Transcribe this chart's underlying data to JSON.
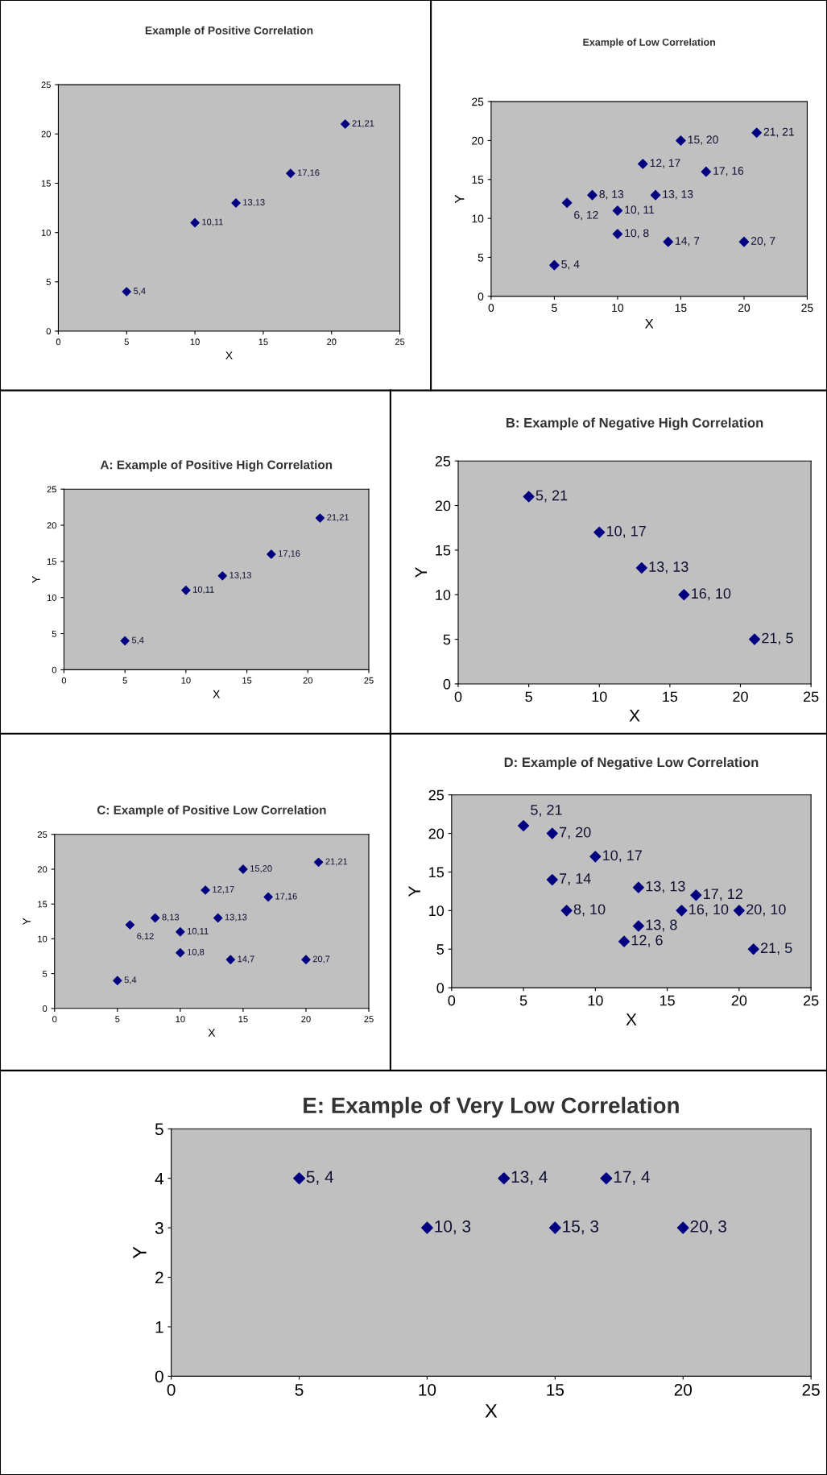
{
  "chart_data": [
    {
      "type": "scatter",
      "title": "Example of Positive Correlation",
      "xlabel": "X",
      "x": [
        5,
        10,
        13,
        17,
        21
      ],
      "values": [
        4,
        11,
        13,
        16,
        21
      ],
      "color": "#000080",
      "marker": "diamond",
      "xlim": [
        0,
        25
      ],
      "ylim": [
        0,
        25
      ],
      "xticks": [
        0,
        5,
        10,
        15,
        20,
        25
      ],
      "yticks": [
        0,
        5,
        10,
        15,
        20,
        25
      ],
      "annotations": [
        {
          "text": "5,4",
          "x": 5,
          "y": 4
        },
        {
          "text": "10,11",
          "x": 10,
          "y": 11
        },
        {
          "text": "13,13",
          "x": 13,
          "y": 13
        },
        {
          "text": "17,16",
          "x": 17,
          "y": 16
        },
        {
          "text": "21,21",
          "x": 21,
          "y": 21
        }
      ]
    },
    {
      "type": "scatter",
      "title": "Example of Low Correlation",
      "xlabel": "X",
      "ylabel": "Y",
      "x": [
        5,
        6,
        8,
        10,
        10,
        12,
        13,
        14,
        15,
        17,
        20,
        21
      ],
      "values": [
        4,
        12,
        13,
        11,
        8,
        17,
        13,
        7,
        20,
        16,
        7,
        21
      ],
      "color": "#000080",
      "marker": "diamond",
      "xlim": [
        0,
        25
      ],
      "ylim": [
        0,
        25
      ],
      "xticks": [
        0,
        5,
        10,
        15,
        20,
        25
      ],
      "yticks": [
        0,
        5,
        10,
        15,
        20,
        25
      ],
      "annotations": [
        {
          "text": "5, 4",
          "x": 5,
          "y": 4
        },
        {
          "text": "6, 12",
          "x": 6,
          "y": 12
        },
        {
          "text": "8, 13",
          "x": 8,
          "y": 13
        },
        {
          "text": "10, 11",
          "x": 10,
          "y": 11
        },
        {
          "text": "10, 8",
          "x": 10,
          "y": 8
        },
        {
          "text": "12, 17",
          "x": 12,
          "y": 17
        },
        {
          "text": "13, 13",
          "x": 13,
          "y": 13
        },
        {
          "text": "14, 7",
          "x": 14,
          "y": 7
        },
        {
          "text": "15, 20",
          "x": 15,
          "y": 20
        },
        {
          "text": "17, 16",
          "x": 17,
          "y": 16
        },
        {
          "text": "20, 7",
          "x": 20,
          "y": 7
        },
        {
          "text": "21, 21",
          "x": 21,
          "y": 21
        }
      ]
    },
    {
      "type": "scatter",
      "title": "A: Example of Positive High Correlation",
      "xlabel": "X",
      "ylabel": "Y",
      "x": [
        5,
        10,
        13,
        17,
        21
      ],
      "values": [
        4,
        11,
        13,
        16,
        21
      ],
      "color": "#000080",
      "marker": "diamond",
      "xlim": [
        0,
        25
      ],
      "ylim": [
        0,
        25
      ],
      "xticks": [
        0,
        5,
        10,
        15,
        20,
        25
      ],
      "yticks": [
        0,
        5,
        10,
        15,
        20,
        25
      ],
      "annotations": [
        {
          "text": "5,4",
          "x": 5,
          "y": 4
        },
        {
          "text": "10,11",
          "x": 10,
          "y": 11
        },
        {
          "text": "13,13",
          "x": 13,
          "y": 13
        },
        {
          "text": "17,16",
          "x": 17,
          "y": 16
        },
        {
          "text": "21,21",
          "x": 21,
          "y": 21
        }
      ]
    },
    {
      "type": "scatter",
      "title": "B: Example of Negative High Correlation",
      "xlabel": "X",
      "ylabel": "Y",
      "x": [
        5,
        10,
        13,
        16,
        21
      ],
      "values": [
        21,
        17,
        13,
        10,
        5
      ],
      "color": "#000080",
      "marker": "diamond",
      "xlim": [
        0,
        25
      ],
      "ylim": [
        0,
        25
      ],
      "xticks": [
        0,
        5,
        10,
        15,
        20,
        25
      ],
      "yticks": [
        0,
        5,
        10,
        15,
        20,
        25
      ],
      "annotations": [
        {
          "text": "5, 21",
          "x": 5,
          "y": 21
        },
        {
          "text": "10, 17",
          "x": 10,
          "y": 17
        },
        {
          "text": "13, 13",
          "x": 13,
          "y": 13
        },
        {
          "text": "16, 10",
          "x": 16,
          "y": 10
        },
        {
          "text": "21, 5",
          "x": 21,
          "y": 5
        }
      ]
    },
    {
      "type": "scatter",
      "title": "C: Example of Positive Low Correlation",
      "xlabel": "X",
      "ylabel": "Y",
      "x": [
        5,
        6,
        8,
        10,
        10,
        12,
        13,
        14,
        15,
        17,
        20,
        21
      ],
      "values": [
        4,
        12,
        13,
        11,
        8,
        17,
        13,
        7,
        20,
        16,
        7,
        21
      ],
      "color": "#000080",
      "marker": "diamond",
      "xlim": [
        0,
        25
      ],
      "ylim": [
        0,
        25
      ],
      "xticks": [
        0,
        5,
        10,
        15,
        20,
        25
      ],
      "yticks": [
        0,
        5,
        10,
        15,
        20,
        25
      ],
      "annotations": [
        {
          "text": "5,4",
          "x": 5,
          "y": 4
        },
        {
          "text": "6,12",
          "x": 6,
          "y": 12
        },
        {
          "text": "8,13",
          "x": 8,
          "y": 13
        },
        {
          "text": "10,11",
          "x": 10,
          "y": 11
        },
        {
          "text": "10,8",
          "x": 10,
          "y": 8
        },
        {
          "text": "12,17",
          "x": 12,
          "y": 17
        },
        {
          "text": "13,13",
          "x": 13,
          "y": 13
        },
        {
          "text": "14,7",
          "x": 14,
          "y": 7
        },
        {
          "text": "15,20",
          "x": 15,
          "y": 20
        },
        {
          "text": "17,16",
          "x": 17,
          "y": 16
        },
        {
          "text": "20,7",
          "x": 20,
          "y": 7
        },
        {
          "text": "21,21",
          "x": 21,
          "y": 21
        }
      ]
    },
    {
      "type": "scatter",
      "title": "D: Example of Negative Low Correlation",
      "xlabel": "X",
      "ylabel": "Y",
      "x": [
        5,
        7,
        10,
        7,
        13,
        17,
        8,
        16,
        20,
        13,
        12,
        21
      ],
      "values": [
        21,
        20,
        17,
        14,
        13,
        12,
        10,
        10,
        10,
        8,
        6,
        5
      ],
      "color": "#000080",
      "marker": "diamond",
      "xlim": [
        0,
        25
      ],
      "ylim": [
        0,
        25
      ],
      "xticks": [
        0,
        5,
        10,
        15,
        20,
        25
      ],
      "yticks": [
        0,
        5,
        10,
        15,
        20,
        25
      ],
      "annotations": [
        {
          "text": "5, 21",
          "x": 5,
          "y": 21
        },
        {
          "text": "7, 20",
          "x": 7,
          "y": 20
        },
        {
          "text": "10, 17",
          "x": 10,
          "y": 17
        },
        {
          "text": "7, 14",
          "x": 7,
          "y": 14
        },
        {
          "text": "13, 13",
          "x": 13,
          "y": 13
        },
        {
          "text": "17, 12",
          "x": 17,
          "y": 12
        },
        {
          "text": "8, 10",
          "x": 8,
          "y": 10
        },
        {
          "text": "16, 10",
          "x": 16,
          "y": 10
        },
        {
          "text": "20, 10",
          "x": 20,
          "y": 10
        },
        {
          "text": "13, 8",
          "x": 13,
          "y": 8
        },
        {
          "text": "12, 6",
          "x": 12,
          "y": 6
        },
        {
          "text": "21, 5",
          "x": 21,
          "y": 5
        }
      ]
    },
    {
      "type": "scatter",
      "title": "E: Example of Very Low Correlation",
      "xlabel": "X",
      "ylabel": "Y",
      "x": [
        5,
        13,
        17,
        10,
        15,
        20
      ],
      "values": [
        4,
        4,
        4,
        3,
        3,
        3
      ],
      "color": "#000080",
      "marker": "diamond",
      "xlim": [
        0,
        25
      ],
      "ylim": [
        0,
        5
      ],
      "xticks": [
        0,
        5,
        10,
        15,
        20,
        25
      ],
      "yticks": [
        0,
        1,
        2,
        3,
        4,
        5
      ],
      "annotations": [
        {
          "text": "5, 4",
          "x": 5,
          "y": 4
        },
        {
          "text": "13, 4",
          "x": 13,
          "y": 4
        },
        {
          "text": "17, 4",
          "x": 17,
          "y": 4
        },
        {
          "text": "10, 3",
          "x": 10,
          "y": 3
        },
        {
          "text": "15, 3",
          "x": 15,
          "y": 3
        },
        {
          "text": "20, 3",
          "x": 20,
          "y": 3
        }
      ]
    }
  ]
}
